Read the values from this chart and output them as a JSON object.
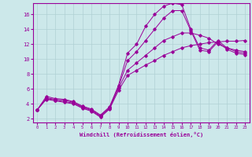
{
  "xlabel": "Windchill (Refroidissement éolien,°C)",
  "bg_color": "#cce8ea",
  "line_color": "#990099",
  "grid_color": "#b0d0d4",
  "xlim": [
    -0.5,
    23.5
  ],
  "ylim": [
    1.5,
    17.5
  ],
  "yticks": [
    2,
    4,
    6,
    8,
    10,
    12,
    14,
    16
  ],
  "xticks": [
    0,
    1,
    2,
    3,
    4,
    5,
    6,
    7,
    8,
    9,
    10,
    11,
    12,
    13,
    14,
    15,
    16,
    17,
    18,
    19,
    20,
    21,
    22,
    23
  ],
  "curve1_x": [
    0,
    1,
    2,
    3,
    4,
    5,
    6,
    7,
    8,
    9,
    10,
    11,
    12,
    13,
    14,
    15,
    16,
    17,
    18,
    19,
    20,
    21,
    22,
    23
  ],
  "curve1_y": [
    3.2,
    5.0,
    4.7,
    4.6,
    4.3,
    3.7,
    3.3,
    2.5,
    3.6,
    6.5,
    10.8,
    12.0,
    14.4,
    16.0,
    17.1,
    17.5,
    17.3,
    14.0,
    11.5,
    11.2,
    12.5,
    11.5,
    11.0,
    10.8
  ],
  "curve2_x": [
    0,
    1,
    2,
    3,
    4,
    5,
    6,
    7,
    8,
    9,
    10,
    11,
    12,
    13,
    14,
    15,
    16,
    17,
    18,
    19,
    20,
    21,
    22,
    23
  ],
  "curve2_y": [
    3.2,
    4.8,
    4.6,
    4.5,
    4.2,
    3.6,
    3.2,
    2.4,
    3.5,
    6.3,
    9.8,
    11.0,
    12.5,
    14.0,
    15.5,
    16.5,
    16.5,
    13.8,
    11.2,
    11.0,
    12.3,
    11.3,
    10.8,
    10.6
  ],
  "curve3_x": [
    0,
    1,
    2,
    3,
    4,
    5,
    6,
    7,
    8,
    9,
    10,
    11,
    12,
    13,
    14,
    15,
    16,
    17,
    18,
    19,
    20,
    21,
    22,
    23
  ],
  "curve3_y": [
    3.2,
    4.7,
    4.5,
    4.3,
    4.1,
    3.5,
    3.1,
    2.3,
    3.4,
    6.1,
    8.5,
    9.5,
    10.5,
    11.5,
    12.5,
    13.0,
    13.5,
    13.5,
    13.2,
    12.8,
    12.0,
    11.5,
    11.2,
    11.0
  ],
  "curve4_x": [
    0,
    1,
    2,
    3,
    4,
    5,
    6,
    7,
    8,
    9,
    10,
    11,
    12,
    13,
    14,
    15,
    16,
    17,
    18,
    19,
    20,
    21,
    22,
    23
  ],
  "curve4_y": [
    3.2,
    4.6,
    4.4,
    4.2,
    4.0,
    3.4,
    3.0,
    2.2,
    3.3,
    5.8,
    7.8,
    8.5,
    9.2,
    9.8,
    10.5,
    11.0,
    11.5,
    11.8,
    12.0,
    12.2,
    12.3,
    12.4,
    12.4,
    12.5
  ]
}
